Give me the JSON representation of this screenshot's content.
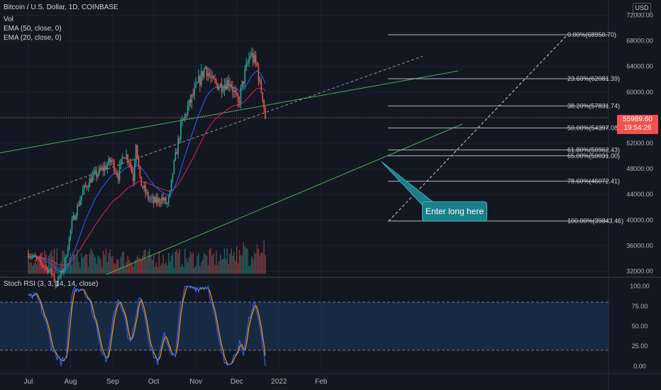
{
  "header": {
    "symbol": "Bitcoin / U.S. Dollar, 1D, COINBASE",
    "vol": "Vol",
    "ema50": "EMA (50, close, 0)",
    "ema20": "EMA (20, close, 0)",
    "stoch": "Stoch RSI (3, 3, 14, 14, close)",
    "currency": "USD"
  },
  "price_tag": {
    "price": "55989.60",
    "countdown": "19:54:26"
  },
  "annotation": {
    "text": "Enter long here"
  },
  "colors": {
    "up": "#26a69a",
    "down": "#ef5350",
    "ema20": "#2962ff",
    "ema50": "#e91e63",
    "trend": "#4caf50",
    "k_line": "#2962ff",
    "d_line": "#ff9800",
    "fib": "#b2b5be",
    "rsi_band": "#1e3a5c"
  },
  "chart_data": [
    {
      "type": "candlestick",
      "title": "Bitcoin / U.S. Dollar, 1D, COINBASE",
      "x_ticks": [
        "Jul",
        "Aug",
        "Sep",
        "Oct",
        "Nov",
        "Dec",
        "2022",
        "Feb"
      ],
      "y_ticks": [
        "72000.00",
        "68000.00",
        "64000.00",
        "60000.00",
        "56000.00",
        "52000.00",
        "48000.00",
        "44000.00",
        "40000.00",
        "36000.00",
        "32000.00"
      ],
      "ylim": [
        31500,
        73500
      ],
      "last_price": 55989.6,
      "fib_levels": [
        {
          "label": "0.00%(68950.70)",
          "value": 68950.7
        },
        {
          "label": "23.60%(62081.39)",
          "value": 62081.39
        },
        {
          "label": "38.20%(57831.74)",
          "value": 57831.74
        },
        {
          "label": "50.00%(54397.08)",
          "value": 54397.08
        },
        {
          "label": "61.80%(50962.43)",
          "value": 50962.43
        },
        {
          "label": "65.00%(50031.00)",
          "value": 50031.0
        },
        {
          "label": "78.60%(46072.41)",
          "value": 46072.41
        },
        {
          "label": "100.00%(39843.46)",
          "value": 39843.46
        }
      ],
      "series": [
        {
          "name": "EMA (20, close, 0)"
        },
        {
          "name": "EMA (50, close, 0)"
        },
        {
          "name": "Vol"
        }
      ]
    },
    {
      "type": "line",
      "title": "Stoch RSI (3, 3, 14, 14, close)",
      "y_ticks": [
        "100.00",
        "75.00",
        "50.00",
        "25.00",
        "0.00"
      ],
      "ylim": [
        -5,
        105
      ],
      "bands": [
        20,
        80
      ]
    }
  ]
}
